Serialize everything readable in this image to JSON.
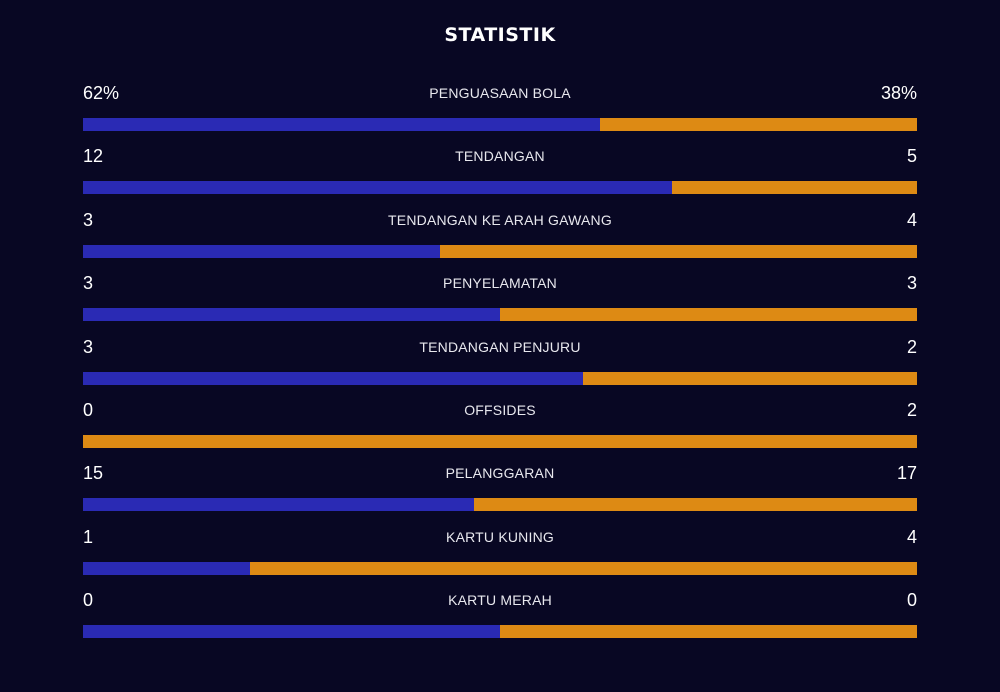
{
  "title": "STATISTIK",
  "colors": {
    "background": "#080723",
    "home": "#2a2ab4",
    "away": "#dd8a14"
  },
  "stats": [
    {
      "label": "PENGUASAAN BOLA",
      "home": "62%",
      "away": "38%",
      "home_share": 0.62
    },
    {
      "label": "TENDANGAN",
      "home": "12",
      "away": "5",
      "home_share": 0.7059
    },
    {
      "label": "TENDANGAN KE ARAH GAWANG",
      "home": "3",
      "away": "4",
      "home_share": 0.4286
    },
    {
      "label": "PENYELAMATAN",
      "home": "3",
      "away": "3",
      "home_share": 0.5
    },
    {
      "label": "TENDANGAN PENJURU",
      "home": "3",
      "away": "2",
      "home_share": 0.6
    },
    {
      "label": "OFFSIDES",
      "home": "0",
      "away": "2",
      "home_share": 0.0
    },
    {
      "label": "PELANGGARAN",
      "home": "15",
      "away": "17",
      "home_share": 0.46875
    },
    {
      "label": "KARTU KUNING",
      "home": "1",
      "away": "4",
      "home_share": 0.2
    },
    {
      "label": "KARTU MERAH",
      "home": "0",
      "away": "0",
      "home_share": 0.5
    }
  ]
}
